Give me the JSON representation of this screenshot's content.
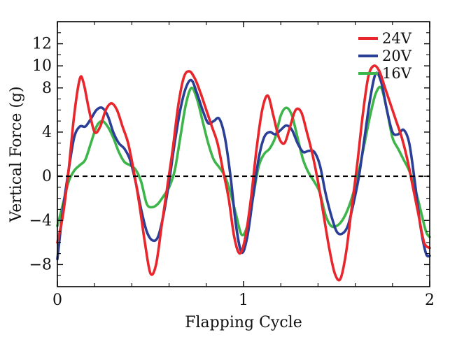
{
  "chart_data": {
    "type": "line",
    "xlabel": "Flapping Cycle",
    "ylabel": "Vertical Force  (g)",
    "xlim": [
      0,
      2
    ],
    "ylim": [
      -10,
      14
    ],
    "xticks": [
      0,
      1,
      2
    ],
    "xtick_labels": [
      "0",
      "1",
      "2"
    ],
    "yticks": [
      -8,
      -4,
      0,
      4,
      8,
      10,
      12
    ],
    "ytick_labels": [
      "−8",
      "−4",
      "0",
      "4",
      "8",
      "10",
      "12"
    ],
    "grid": false,
    "legend_position": "top-right",
    "reference_line": {
      "y": 0,
      "style": "dashed",
      "color": "#000000"
    },
    "series": [
      {
        "name": "24V",
        "color": "#e8262b",
        "x": [
          0,
          0.03,
          0.06,
          0.09,
          0.12,
          0.14,
          0.17,
          0.2,
          0.23,
          0.26,
          0.29,
          0.32,
          0.35,
          0.38,
          0.41,
          0.44,
          0.47,
          0.5,
          0.53,
          0.56,
          0.59,
          0.62,
          0.65,
          0.68,
          0.71,
          0.74,
          0.77,
          0.8,
          0.83,
          0.86,
          0.89,
          0.92,
          0.95,
          0.98,
          1.01,
          1.04,
          1.07,
          1.1,
          1.13,
          1.16,
          1.19,
          1.22,
          1.25,
          1.28,
          1.31,
          1.34,
          1.37,
          1.4,
          1.43,
          1.46,
          1.49,
          1.52,
          1.55,
          1.58,
          1.61,
          1.64,
          1.67,
          1.7,
          1.73,
          1.76,
          1.79,
          1.82,
          1.85,
          1.88,
          1.91,
          1.94,
          1.97,
          2.0
        ],
        "values": [
          -6.0,
          -3.5,
          0.5,
          5.5,
          8.8,
          8.5,
          6.0,
          4.0,
          4.5,
          6.0,
          6.6,
          6.0,
          4.5,
          3.0,
          0.5,
          -2.5,
          -6.0,
          -8.8,
          -8.0,
          -4.5,
          -1.0,
          2.5,
          6.5,
          9.0,
          9.5,
          8.8,
          7.5,
          6.0,
          4.5,
          3.0,
          0.5,
          -2.0,
          -5.5,
          -7.0,
          -5.5,
          -2.0,
          2.5,
          6.0,
          7.3,
          5.5,
          3.5,
          3.0,
          4.5,
          6.0,
          5.8,
          4.0,
          2.0,
          -0.5,
          -3.5,
          -6.5,
          -8.8,
          -9.3,
          -7.0,
          -3.0,
          1.0,
          5.5,
          9.0,
          10.0,
          9.5,
          8.0,
          6.5,
          5.0,
          3.5,
          1.5,
          -1.0,
          -3.5,
          -6.0,
          -6.5
        ]
      },
      {
        "name": "20V",
        "color": "#2b3f97",
        "x": [
          0,
          0.03,
          0.06,
          0.09,
          0.12,
          0.15,
          0.18,
          0.21,
          0.24,
          0.27,
          0.3,
          0.33,
          0.36,
          0.39,
          0.42,
          0.45,
          0.48,
          0.51,
          0.54,
          0.57,
          0.6,
          0.63,
          0.66,
          0.69,
          0.72,
          0.75,
          0.78,
          0.81,
          0.84,
          0.87,
          0.9,
          0.93,
          0.96,
          0.99,
          1.02,
          1.05,
          1.08,
          1.11,
          1.14,
          1.17,
          1.2,
          1.23,
          1.26,
          1.29,
          1.32,
          1.35,
          1.38,
          1.41,
          1.44,
          1.47,
          1.5,
          1.53,
          1.56,
          1.59,
          1.62,
          1.65,
          1.68,
          1.71,
          1.74,
          1.77,
          1.8,
          1.83,
          1.86,
          1.89,
          1.92,
          1.95,
          1.98,
          2.0
        ],
        "values": [
          -7.5,
          -3.0,
          0.5,
          3.5,
          4.5,
          4.5,
          5.2,
          6.0,
          6.2,
          5.5,
          4.0,
          3.0,
          2.5,
          1.5,
          -0.5,
          -3.0,
          -5.0,
          -5.8,
          -5.5,
          -3.5,
          -0.5,
          3.0,
          6.0,
          8.0,
          8.7,
          7.5,
          6.0,
          4.8,
          5.0,
          5.2,
          3.5,
          0.0,
          -4.5,
          -6.9,
          -5.5,
          -2.0,
          1.5,
          3.5,
          4.0,
          3.8,
          4.2,
          4.6,
          4.2,
          3.0,
          2.2,
          2.3,
          2.2,
          1.0,
          -1.5,
          -3.5,
          -5.0,
          -5.2,
          -4.5,
          -2.5,
          0.0,
          3.5,
          7.0,
          9.3,
          8.5,
          6.0,
          4.0,
          3.8,
          4.2,
          3.0,
          -0.5,
          -4.5,
          -7.0,
          -7.2
        ]
      },
      {
        "name": "16V",
        "color": "#3db54a",
        "x": [
          0,
          0.03,
          0.06,
          0.09,
          0.12,
          0.15,
          0.18,
          0.21,
          0.24,
          0.27,
          0.3,
          0.33,
          0.36,
          0.39,
          0.42,
          0.45,
          0.48,
          0.51,
          0.54,
          0.57,
          0.6,
          0.63,
          0.66,
          0.69,
          0.72,
          0.75,
          0.78,
          0.81,
          0.84,
          0.87,
          0.9,
          0.93,
          0.96,
          0.99,
          1.02,
          1.05,
          1.08,
          1.11,
          1.14,
          1.17,
          1.2,
          1.23,
          1.26,
          1.29,
          1.32,
          1.35,
          1.38,
          1.41,
          1.44,
          1.47,
          1.5,
          1.53,
          1.56,
          1.59,
          1.62,
          1.65,
          1.68,
          1.71,
          1.74,
          1.77,
          1.8,
          1.83,
          1.86,
          1.89,
          1.92,
          1.95,
          1.98,
          2.0
        ],
        "values": [
          -4.5,
          -2.5,
          -0.5,
          0.5,
          1.0,
          1.5,
          3.0,
          4.5,
          5.0,
          4.5,
          3.5,
          2.2,
          1.3,
          1.0,
          0.6,
          -0.5,
          -2.5,
          -2.8,
          -2.5,
          -1.8,
          -1.0,
          0.5,
          3.5,
          6.5,
          8.0,
          7.0,
          5.0,
          3.0,
          1.5,
          0.8,
          0.0,
          -1.5,
          -3.5,
          -5.3,
          -4.5,
          -2.0,
          0.8,
          2.0,
          2.5,
          3.5,
          5.5,
          6.2,
          5.5,
          3.5,
          1.5,
          0.3,
          -0.5,
          -1.5,
          -3.5,
          -4.5,
          -4.5,
          -4.0,
          -3.0,
          -1.5,
          0.5,
          3.0,
          5.5,
          7.5,
          8.0,
          6.0,
          3.5,
          2.5,
          1.5,
          0.5,
          -1.0,
          -3.0,
          -5.0,
          -5.5
        ]
      }
    ]
  }
}
